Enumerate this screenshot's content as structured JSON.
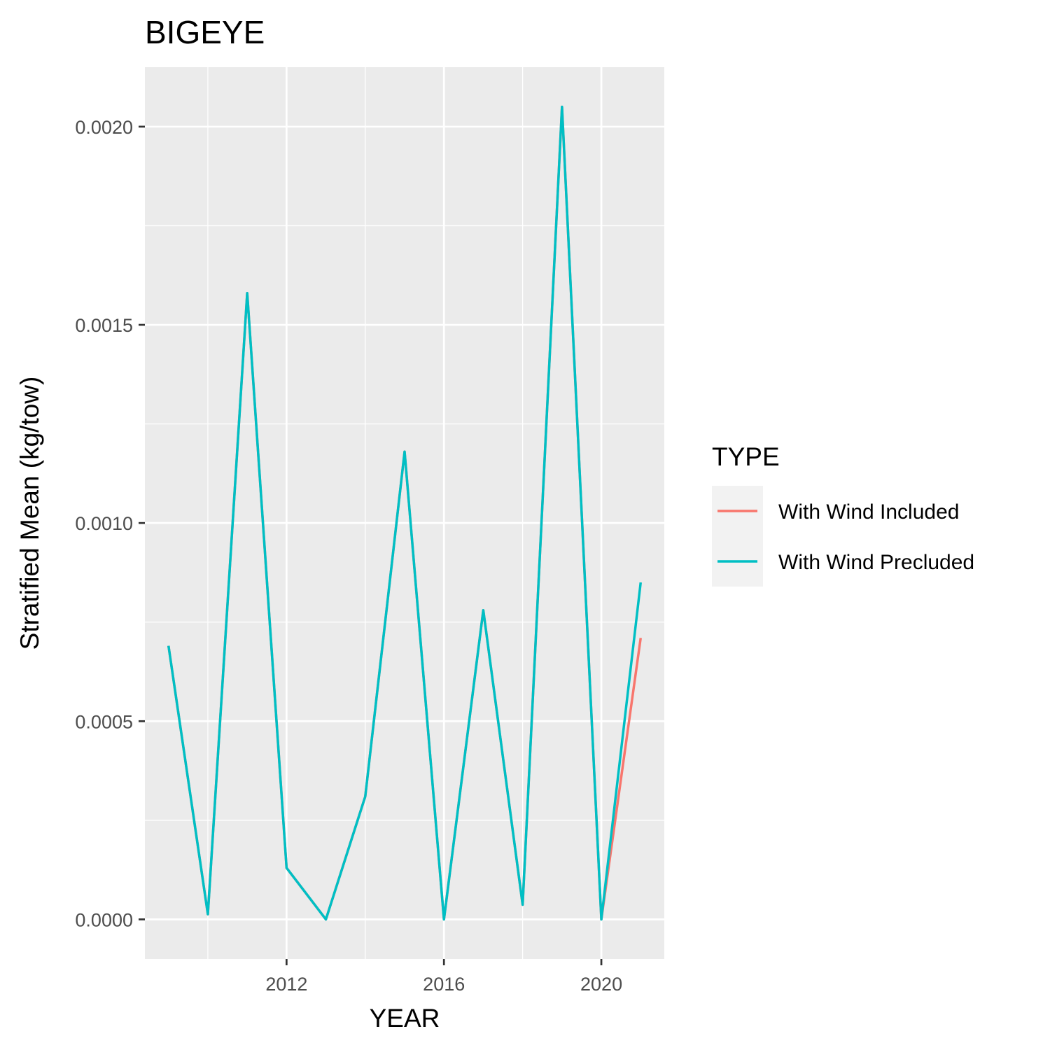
{
  "chart_data": {
    "type": "line",
    "title": "BIGEYE",
    "xlabel": "YEAR",
    "ylabel": "Stratified Mean (kg/tow)",
    "xlim": [
      2008.4,
      2021.6
    ],
    "ylim": [
      -0.0001,
      0.00215
    ],
    "x_ticks": [
      2012,
      2016,
      2020
    ],
    "x_tick_labels": [
      "2012",
      "2016",
      "2020"
    ],
    "y_ticks": [
      0,
      0.0005,
      0.001,
      0.0015,
      0.002
    ],
    "y_tick_labels": [
      "0.0000",
      "0.0005",
      "0.0010",
      "0.0015",
      "0.0020"
    ],
    "grid": true,
    "background": "#ebebeb",
    "legend": {
      "title": "TYPE",
      "position": "right"
    },
    "series": [
      {
        "name": "With Wind Included",
        "color": "#f8766d",
        "x": [
          2009,
          2010,
          2011,
          2012,
          2013,
          2014,
          2015,
          2016,
          2017,
          2018,
          2019,
          2020,
          2021
        ],
        "values": [
          0.00069,
          1.3e-05,
          0.00158,
          0.00013,
          0.0,
          0.00031,
          0.00118,
          0.0,
          0.00078,
          3.7e-05,
          0.00205,
          0.0,
          0.00071
        ]
      },
      {
        "name": "With Wind Precluded",
        "color": "#00bfc4",
        "x": [
          2009,
          2010,
          2011,
          2012,
          2013,
          2014,
          2015,
          2016,
          2017,
          2018,
          2019,
          2020,
          2021
        ],
        "values": [
          0.00069,
          1.3e-05,
          0.00158,
          0.00013,
          0.0,
          0.00031,
          0.00118,
          0.0,
          0.00078,
          3.7e-05,
          0.00205,
          0.0,
          0.00085
        ]
      }
    ]
  }
}
